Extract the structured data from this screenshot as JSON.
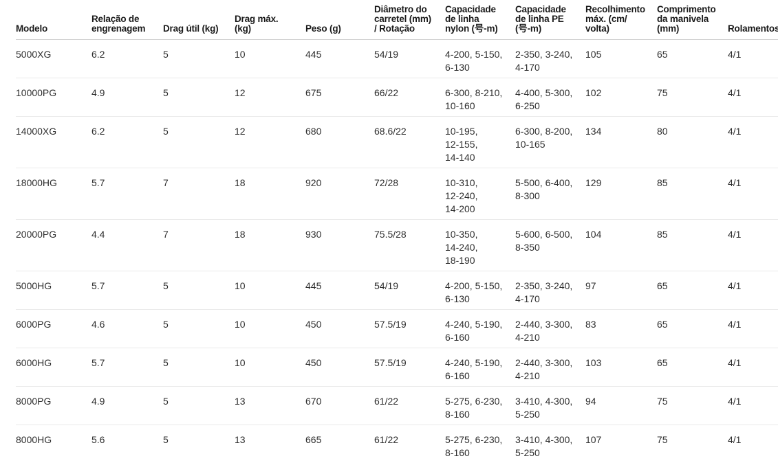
{
  "table": {
    "columns": [
      "Modelo",
      "Relação de\nengrenagem",
      "Drag útil (kg)",
      "Drag máx.\n(kg)",
      "Peso (g)",
      "Diâmetro do\ncarretel (mm)\n/ Rotação",
      "Capacidade\nde linha\nnylon (号-m)",
      "Capacidade\nde linha PE\n(号-m)",
      "Recolhimento\nmáx. (cm/\nvolta)",
      "Comprimento\nda manivela\n(mm)",
      "Rolamentos"
    ],
    "rows": [
      [
        "5000XG",
        "6.2",
        "5",
        "10",
        "445",
        "54/19",
        "4-200, 5-150,\n6-130",
        "2-350, 3-240,\n4-170",
        "105",
        "65",
        "4/1"
      ],
      [
        "10000PG",
        "4.9",
        "5",
        "12",
        "675",
        "66/22",
        "6-300, 8-210,\n10-160",
        "4-400, 5-300,\n6-250",
        "102",
        "75",
        "4/1"
      ],
      [
        "14000XG",
        "6.2",
        "5",
        "12",
        "680",
        "68.6/22",
        "10-195,\n12-155,\n14-140",
        "6-300, 8-200,\n10-165",
        "134",
        "80",
        "4/1"
      ],
      [
        "18000HG",
        "5.7",
        "7",
        "18",
        "920",
        "72/28",
        "10-310,\n12-240,\n14-200",
        "5-500, 6-400,\n8-300",
        "129",
        "85",
        "4/1"
      ],
      [
        "20000PG",
        "4.4",
        "7",
        "18",
        "930",
        "75.5/28",
        "10-350,\n14-240,\n18-190",
        "5-600, 6-500,\n8-350",
        "104",
        "85",
        "4/1"
      ],
      [
        "5000HG",
        "5.7",
        "5",
        "10",
        "445",
        "54/19",
        "4-200, 5-150,\n6-130",
        "2-350, 3-240,\n4-170",
        "97",
        "65",
        "4/1"
      ],
      [
        "6000PG",
        "4.6",
        "5",
        "10",
        "450",
        "57.5/19",
        "4-240, 5-190,\n6-160",
        "2-440, 3-300,\n4-210",
        "83",
        "65",
        "4/1"
      ],
      [
        "6000HG",
        "5.7",
        "5",
        "10",
        "450",
        "57.5/19",
        "4-240, 5-190,\n6-160",
        "2-440, 3-300,\n4-210",
        "103",
        "65",
        "4/1"
      ],
      [
        "8000PG",
        "4.9",
        "5",
        "13",
        "670",
        "61/22",
        "5-275, 6-230,\n8-160",
        "3-410, 4-300,\n5-250",
        "94",
        "75",
        "4/1"
      ],
      [
        "8000HG",
        "5.6",
        "5",
        "13",
        "665",
        "61/22",
        "5-275, 6-230,\n8-160",
        "3-410, 4-300,\n5-250",
        "107",
        "75",
        "4/1"
      ]
    ]
  }
}
